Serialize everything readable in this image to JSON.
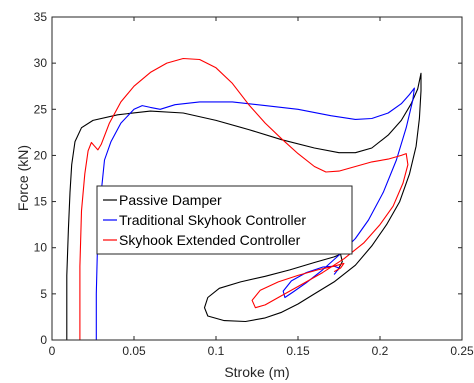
{
  "chart_data": {
    "type": "line",
    "xlabel": "Stroke (m)",
    "ylabel": "Force (kN)",
    "xlim": [
      0,
      0.25
    ],
    "ylim": [
      0,
      35
    ],
    "xticks": [
      "0",
      "0.05",
      "0.1",
      "0.15",
      "0.2",
      "0.25"
    ],
    "yticks": [
      "0",
      "5",
      "10",
      "15",
      "20",
      "25",
      "30",
      "35"
    ],
    "grid": false,
    "legend_position": "center-left",
    "series": [
      {
        "name": "Passive Damper",
        "color": "#000000",
        "points": [
          [
            0.009,
            0
          ],
          [
            0.009,
            7
          ],
          [
            0.01,
            12
          ],
          [
            0.011,
            16
          ],
          [
            0.012,
            19
          ],
          [
            0.014,
            21.5
          ],
          [
            0.018,
            23
          ],
          [
            0.025,
            23.8
          ],
          [
            0.04,
            24.4
          ],
          [
            0.06,
            24.8
          ],
          [
            0.08,
            24.6
          ],
          [
            0.1,
            23.8
          ],
          [
            0.12,
            22.8
          ],
          [
            0.14,
            21.7
          ],
          [
            0.16,
            20.8
          ],
          [
            0.175,
            20.3
          ],
          [
            0.185,
            20.3
          ],
          [
            0.195,
            20.8
          ],
          [
            0.205,
            22.2
          ],
          [
            0.213,
            23.8
          ],
          [
            0.219,
            25.6
          ],
          [
            0.223,
            27.2
          ],
          [
            0.225,
            28.9
          ],
          [
            0.225,
            27.0
          ],
          [
            0.224,
            24.0
          ],
          [
            0.222,
            21.0
          ],
          [
            0.218,
            18.0
          ],
          [
            0.212,
            15.0
          ],
          [
            0.204,
            12.5
          ],
          [
            0.195,
            10.2
          ],
          [
            0.185,
            8.1
          ],
          [
            0.172,
            6.3
          ],
          [
            0.16,
            5.0
          ],
          [
            0.15,
            3.9
          ],
          [
            0.14,
            3.0
          ],
          [
            0.13,
            2.4
          ],
          [
            0.118,
            2.0
          ],
          [
            0.105,
            2.1
          ],
          [
            0.095,
            2.6
          ],
          [
            0.093,
            3.5
          ],
          [
            0.095,
            4.6
          ],
          [
            0.102,
            5.6
          ],
          [
            0.115,
            6.3
          ],
          [
            0.13,
            6.9
          ],
          [
            0.145,
            7.6
          ],
          [
            0.16,
            8.4
          ],
          [
            0.172,
            9.0
          ],
          [
            0.176,
            9.3
          ],
          [
            0.177,
            8.5
          ],
          [
            0.174,
            7.5
          ]
        ]
      },
      {
        "name": "Traditional Skyhook Controller",
        "color": "#0000ff",
        "points": [
          [
            0.027,
            0
          ],
          [
            0.027,
            5
          ],
          [
            0.028,
            12
          ],
          [
            0.03,
            16
          ],
          [
            0.032,
            19.5
          ],
          [
            0.036,
            21.5
          ],
          [
            0.042,
            23.5
          ],
          [
            0.05,
            25.0
          ],
          [
            0.055,
            25.4
          ],
          [
            0.06,
            25.2
          ],
          [
            0.066,
            25.0
          ],
          [
            0.075,
            25.5
          ],
          [
            0.09,
            25.8
          ],
          [
            0.11,
            25.8
          ],
          [
            0.13,
            25.4
          ],
          [
            0.15,
            25.0
          ],
          [
            0.17,
            24.3
          ],
          [
            0.185,
            23.9
          ],
          [
            0.195,
            24.0
          ],
          [
            0.205,
            24.6
          ],
          [
            0.213,
            25.6
          ],
          [
            0.218,
            26.6
          ],
          [
            0.221,
            27.3
          ],
          [
            0.22,
            26.0
          ],
          [
            0.216,
            23.0
          ],
          [
            0.21,
            19.5
          ],
          [
            0.202,
            16.0
          ],
          [
            0.193,
            13.0
          ],
          [
            0.185,
            11.0
          ],
          [
            0.175,
            9.2
          ],
          [
            0.165,
            7.6
          ],
          [
            0.155,
            6.2
          ],
          [
            0.147,
            5.2
          ],
          [
            0.142,
            4.6
          ],
          [
            0.141,
            5.3
          ],
          [
            0.146,
            6.4
          ],
          [
            0.155,
            7.3
          ],
          [
            0.165,
            7.9
          ],
          [
            0.172,
            8.0
          ],
          [
            0.175,
            7.8
          ],
          [
            0.173,
            7.3
          ],
          [
            0.172,
            7.1
          ]
        ]
      },
      {
        "name": "Skyhook Extended Controller",
        "color": "#ff0000",
        "points": [
          [
            0.017,
            0
          ],
          [
            0.017,
            8
          ],
          [
            0.018,
            14
          ],
          [
            0.02,
            18
          ],
          [
            0.022,
            20.5
          ],
          [
            0.024,
            21.4
          ],
          [
            0.026,
            21.0
          ],
          [
            0.028,
            20.6
          ],
          [
            0.03,
            21.2
          ],
          [
            0.035,
            23.5
          ],
          [
            0.042,
            25.8
          ],
          [
            0.05,
            27.5
          ],
          [
            0.06,
            29.0
          ],
          [
            0.07,
            30.0
          ],
          [
            0.08,
            30.5
          ],
          [
            0.09,
            30.4
          ],
          [
            0.1,
            29.5
          ],
          [
            0.11,
            27.8
          ],
          [
            0.12,
            25.5
          ],
          [
            0.13,
            23.5
          ],
          [
            0.14,
            21.8
          ],
          [
            0.15,
            20.2
          ],
          [
            0.16,
            18.8
          ],
          [
            0.167,
            18.2
          ],
          [
            0.175,
            18.3
          ],
          [
            0.185,
            18.8
          ],
          [
            0.195,
            19.3
          ],
          [
            0.205,
            19.6
          ],
          [
            0.213,
            20.0
          ],
          [
            0.216,
            20.2
          ],
          [
            0.217,
            19.0
          ],
          [
            0.214,
            17.0
          ],
          [
            0.208,
            14.5
          ],
          [
            0.2,
            12.5
          ],
          [
            0.19,
            10.5
          ],
          [
            0.178,
            8.8
          ],
          [
            0.165,
            7.3
          ],
          [
            0.15,
            5.8
          ],
          [
            0.138,
            4.6
          ],
          [
            0.13,
            3.8
          ],
          [
            0.124,
            3.5
          ],
          [
            0.122,
            4.3
          ],
          [
            0.127,
            5.4
          ],
          [
            0.138,
            6.3
          ],
          [
            0.15,
            7.0
          ],
          [
            0.162,
            7.6
          ],
          [
            0.172,
            8.0
          ],
          [
            0.178,
            8.3
          ],
          [
            0.176,
            7.8
          ],
          [
            0.172,
            7.4
          ]
        ]
      }
    ]
  }
}
